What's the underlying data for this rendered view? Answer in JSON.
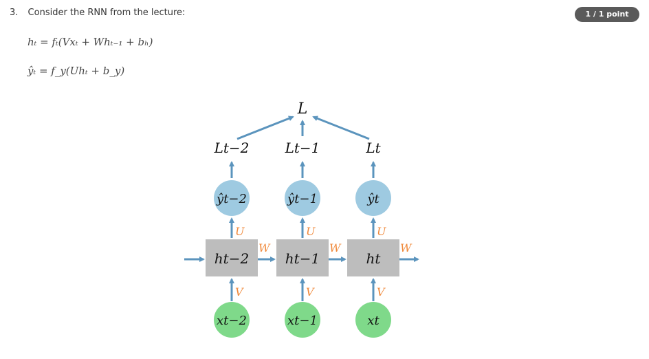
{
  "question": {
    "number": "3.",
    "text": "Consider the RNN from the lecture:",
    "points": "1 / 1 point"
  },
  "equations": {
    "hidden": "hₜ = fₜ(Vxₜ + Whₜ₋₁ + bₕ)",
    "output": "ŷₜ = f_y(Uhₜ + b_y)"
  },
  "diagram": {
    "loss_total": "L",
    "losses": [
      "Lt−2",
      "Lt−1",
      "Lt"
    ],
    "outputs": [
      "ŷt−2",
      "ŷt−1",
      "ŷt"
    ],
    "hidden": [
      "ht−2",
      "ht−1",
      "ht"
    ],
    "inputs": [
      "xt−2",
      "xt−1",
      "xt"
    ],
    "weight_U": "U",
    "weight_V": "V",
    "weight_W": "W",
    "colors": {
      "output_node": "#9ecae1",
      "hidden_node": "#bdbdbd",
      "input_node": "#7fd98a",
      "arrow": "#5b94bd",
      "weight_label": "#f08a3c"
    }
  }
}
